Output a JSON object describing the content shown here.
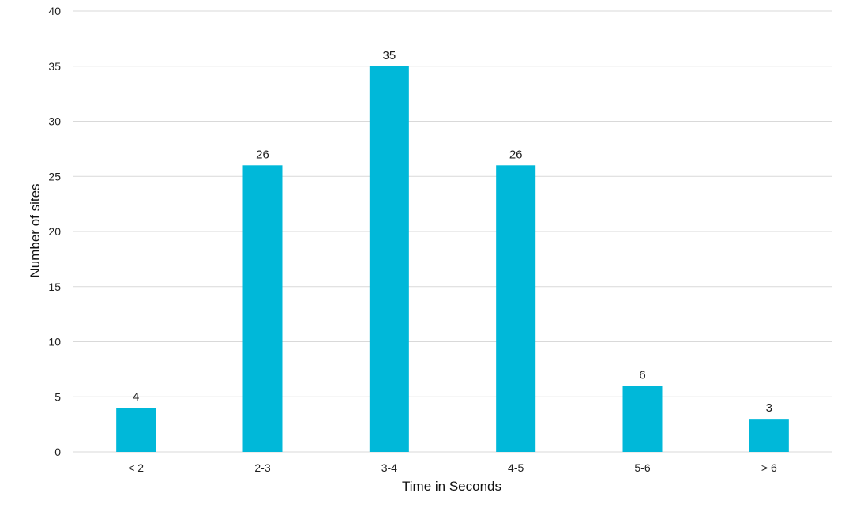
{
  "chart_data": {
    "type": "bar",
    "categories": [
      "< 2",
      "2-3",
      "3-4",
      "4-5",
      "5-6",
      "> 6"
    ],
    "values": [
      4,
      26,
      35,
      26,
      6,
      3
    ],
    "title": "",
    "xlabel": "Time in Seconds",
    "ylabel": "Number of sites",
    "ylim": [
      0,
      40
    ],
    "yticks": [
      0,
      5,
      10,
      15,
      20,
      25,
      30,
      35,
      40
    ],
    "grid": true,
    "legend": "none",
    "data_labels": true,
    "colors": {
      "bar": "#00b8d9",
      "grid": "#d9d9d9",
      "text": "#1f1f1f"
    }
  }
}
